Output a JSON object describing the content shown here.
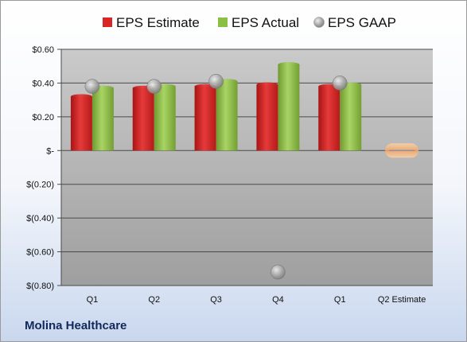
{
  "company": "Molina Healthcare",
  "colors": {
    "estimate": "#e02a2a",
    "actual": "#92c04a",
    "gaap": "#a8a8a8",
    "q2_estimate": "#f3b37a"
  },
  "chart_data": {
    "type": "bar",
    "categories": [
      "Q1",
      "Q2",
      "Q3",
      "Q4",
      "Q1",
      "Q2 Estimate"
    ],
    "series": [
      {
        "name": "EPS Estimate",
        "kind": "bar",
        "values": [
          0.32,
          0.37,
          0.38,
          0.39,
          0.38,
          null
        ]
      },
      {
        "name": "EPS Actual",
        "kind": "bar",
        "values": [
          0.37,
          0.38,
          0.41,
          0.51,
          0.39,
          null
        ]
      },
      {
        "name": "EPS GAAP",
        "kind": "marker",
        "values": [
          0.38,
          0.38,
          0.41,
          -0.72,
          0.4,
          null
        ]
      }
    ],
    "q2_estimate_value": 0.0,
    "yticks": [
      0.6,
      0.4,
      0.2,
      0,
      -0.2,
      -0.4,
      -0.6,
      -0.8
    ],
    "ytick_labels": [
      "$0.60",
      "$0.40",
      "$0.20",
      "$-",
      "$(0.20)",
      "$(0.40)",
      "$(0.60)",
      "$(0.80)"
    ],
    "ylim": [
      -0.8,
      0.6
    ],
    "legend_position": "top",
    "grid": true
  }
}
